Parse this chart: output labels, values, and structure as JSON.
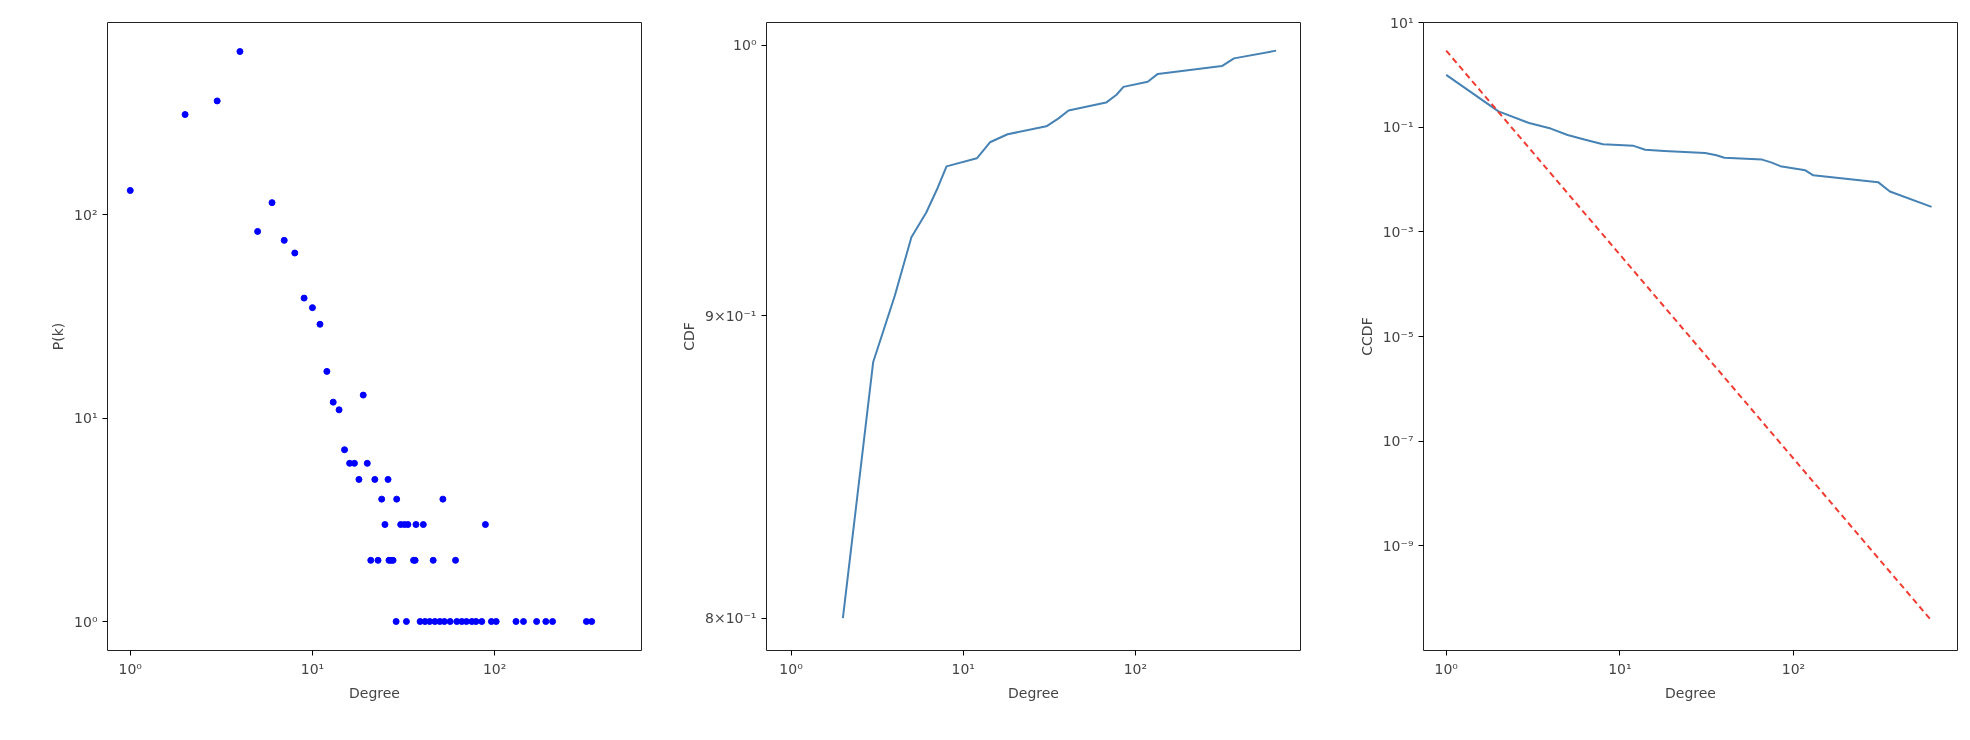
{
  "chart_data": [
    {
      "type": "scatter",
      "xlabel": "Degree",
      "ylabel": "P(k)",
      "log": "xy",
      "marker": "circle",
      "xlim": [
        0.75,
        640
      ],
      "ylim": [
        0.72,
        885
      ],
      "xticks": [
        {
          "value": 1,
          "label": "10⁰"
        },
        {
          "value": 10,
          "label": "10¹"
        },
        {
          "value": 100,
          "label": "10²"
        }
      ],
      "yticks": [
        {
          "value": 1,
          "label": "10⁰"
        },
        {
          "value": 10,
          "label": "10¹"
        },
        {
          "value": 100,
          "label": "10²"
        }
      ],
      "series": [
        {
          "color": "#0000ff",
          "x": [
            1,
            2,
            3,
            4,
            5,
            6,
            7,
            8,
            9,
            10,
            11,
            12,
            13,
            14,
            15,
            16,
            17,
            18,
            19,
            20,
            22,
            26,
            24,
            29,
            52,
            25,
            30.5,
            32,
            33.4,
            37,
            40.6,
            89,
            20.9,
            22.9,
            26.3,
            27,
            27.7,
            35.9,
            36.6,
            46,
            61,
            28.8,
            32.8,
            39,
            41.5,
            44,
            47,
            50,
            53,
            57,
            62,
            66,
            70,
            75,
            79,
            85,
            96,
            102,
            131,
            144,
            170,
            191,
            208,
            319,
            341
          ],
          "values": [
            132,
            312,
            364,
            637,
            83,
            115,
            75,
            65,
            39,
            35,
            29,
            17,
            12,
            11,
            7,
            6,
            6,
            5,
            13,
            6,
            5,
            5,
            4,
            4,
            4,
            3,
            3,
            3,
            3,
            3,
            3,
            3,
            2,
            2,
            2,
            2,
            2,
            2,
            2,
            2,
            2,
            1,
            1,
            1,
            1,
            1,
            1,
            1,
            1,
            1,
            1,
            1,
            1,
            1,
            1,
            1,
            1,
            1,
            1,
            1,
            1,
            1,
            1,
            1,
            1
          ]
        }
      ]
    },
    {
      "type": "line",
      "xlabel": "Degree",
      "ylabel": "CDF",
      "log": "xy",
      "xlim": [
        0.72,
        910
      ],
      "ylim": [
        0.79,
        1.009
      ],
      "xticks": [
        {
          "value": 1,
          "label": "10⁰"
        },
        {
          "value": 10,
          "label": "10¹"
        },
        {
          "value": 100,
          "label": "10²"
        }
      ],
      "yticks": [
        {
          "value": 0.8,
          "label": "8×10⁻¹"
        },
        {
          "value": 0.9,
          "label": "9×10⁻¹"
        },
        {
          "value": 1,
          "label": "10⁰"
        }
      ],
      "series": [
        {
          "color": "#4682b4",
          "x": [
            2,
            3,
            4,
            5,
            6.1,
            7.1,
            8,
            12,
            14.3,
            18.1,
            30.4,
            35.8,
            40.9,
            67.6,
            77.7,
            85.2,
            118,
            135,
            318,
            374,
            657
          ],
          "values": [
            0.8,
            0.884,
            0.907,
            0.928,
            0.937,
            0.946,
            0.954,
            0.957,
            0.963,
            0.966,
            0.969,
            0.972,
            0.975,
            0.978,
            0.981,
            0.984,
            0.986,
            0.989,
            0.992,
            0.995,
            0.998
          ]
        }
      ]
    },
    {
      "type": "line",
      "xlabel": "Degree",
      "ylabel": "CCDF",
      "log": "xy",
      "xlim": [
        0.74,
        880
      ],
      "ylim": [
        1e-11,
        10
      ],
      "xticks": [
        {
          "value": 1,
          "label": "10⁰"
        },
        {
          "value": 10,
          "label": "10¹"
        },
        {
          "value": 100,
          "label": "10²"
        }
      ],
      "yticks": [
        {
          "value": 1e-09,
          "label": "10⁻⁹"
        },
        {
          "value": 1e-07,
          "label": "10⁻⁷"
        },
        {
          "value": 1e-05,
          "label": "10⁻⁵"
        },
        {
          "value": 0.001,
          "label": "10⁻³"
        },
        {
          "value": 0.1,
          "label": "10⁻¹"
        },
        {
          "value": 10,
          "label": "10¹"
        }
      ],
      "series": [
        {
          "color": "#4682b4",
          "line_style": "solid",
          "x": [
            1,
            2,
            3,
            4,
            5,
            6.4,
            8,
            12,
            14,
            18,
            31,
            36,
            40,
            66,
            75,
            84,
            117,
            130,
            307,
            359,
            624
          ],
          "values": [
            1.0,
            0.2,
            0.12,
            0.094,
            0.071,
            0.057,
            0.047,
            0.044,
            0.037,
            0.035,
            0.032,
            0.029,
            0.026,
            0.024,
            0.021,
            0.018,
            0.015,
            0.012,
            0.0089,
            0.0059,
            0.003
          ]
        },
        {
          "color": "#f03c32",
          "line_style": "dashed",
          "x": [
            1,
            624
          ],
          "values": [
            2.9,
            3.7e-11
          ]
        }
      ]
    }
  ]
}
